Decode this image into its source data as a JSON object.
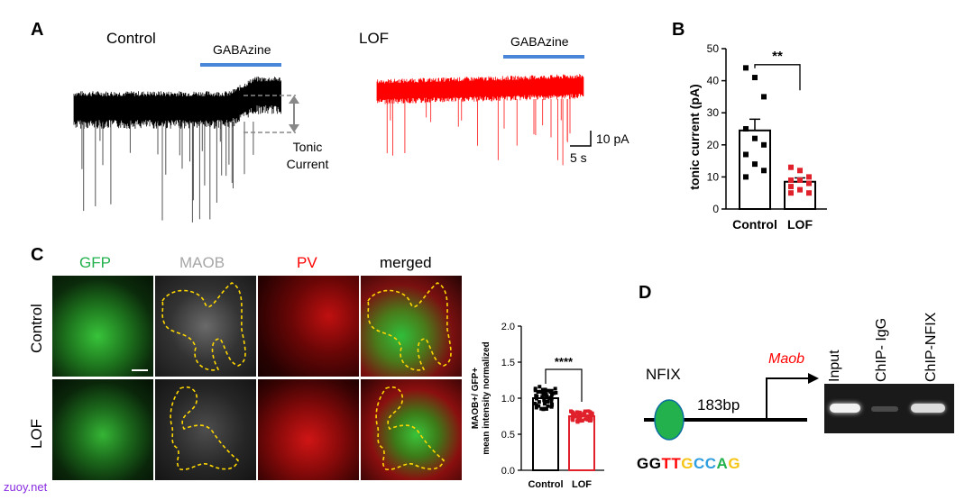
{
  "panels": {
    "a": "A",
    "b": "B",
    "c": "C",
    "d": "D"
  },
  "panel_a": {
    "control_label": "Control",
    "lof_label": "LOF",
    "drug": "GABAzine",
    "tonic_line1": "Tonic",
    "tonic_line2": "Current",
    "scale_y": "10 pA",
    "scale_x": "5 s",
    "colors": {
      "control": "#000000",
      "lof": "#ff0000",
      "drug_bar": "#4a86d8"
    }
  },
  "panel_b": {
    "chart_data": {
      "type": "bar",
      "categories": [
        "Control",
        "LOF"
      ],
      "values": [
        24.5,
        8.5
      ],
      "sem": [
        3.5,
        1.2
      ],
      "points": [
        [
          44,
          41,
          35,
          25,
          22,
          20,
          17,
          14,
          12,
          10
        ],
        [
          13,
          12,
          10,
          9,
          9,
          8,
          7,
          6,
          5,
          5
        ]
      ],
      "ylabel": "tonic current (pA)",
      "ylim": [
        0,
        50
      ],
      "yticks": [
        "0",
        "10",
        "20",
        "30",
        "40",
        "50"
      ],
      "significance": "**"
    }
  },
  "panel_c": {
    "columns": [
      "GFP",
      "MAOB",
      "PV",
      "merged"
    ],
    "column_colors": [
      "#22b14c",
      "#a6a6a6",
      "#ff0000",
      "#000000"
    ],
    "rows": [
      "Control",
      "LOF"
    ],
    "chart_data": {
      "type": "bar",
      "categories": [
        "Control",
        "LOF"
      ],
      "values": [
        1.0,
        0.75
      ],
      "ylabel_line1": "MAOB+/ GFP+",
      "ylabel_line2": "mean intensity normalized",
      "ylim": [
        0.0,
        2.0
      ],
      "yticks": [
        "0.0",
        "0.5",
        "1.0",
        "1.5",
        "2.0"
      ],
      "significance": "****"
    }
  },
  "panel_d": {
    "factor": "NFIX",
    "gene": "Maob",
    "distance": "183bp",
    "motif": [
      {
        "ch": "G",
        "color": "#000000"
      },
      {
        "ch": "G",
        "color": "#000000"
      },
      {
        "ch": "T",
        "color": "#ff0000"
      },
      {
        "ch": "T",
        "color": "#ff0000"
      },
      {
        "ch": "G",
        "color": "#f5c518"
      },
      {
        "ch": "C",
        "color": "#2f9ee0"
      },
      {
        "ch": "C",
        "color": "#2f9ee0"
      },
      {
        "ch": "A",
        "color": "#22b14c"
      },
      {
        "ch": "G",
        "color": "#f5c518"
      }
    ],
    "lanes": [
      "Input",
      "ChIP- IgG",
      "ChIP-NFIX"
    ]
  },
  "watermark": "zuoy.net"
}
